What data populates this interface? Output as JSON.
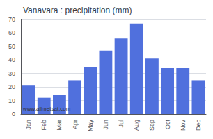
{
  "chart_data": {
    "type": "bar",
    "title": "Vanavara : precipitation (mm)",
    "categories": [
      "Jan",
      "Feb",
      "Mar",
      "Apr",
      "May",
      "Jun",
      "Jul",
      "Aug",
      "Sep",
      "Oct",
      "Nov",
      "Dec"
    ],
    "values": [
      21,
      12,
      14,
      25,
      35,
      47,
      56,
      67,
      41,
      34,
      34,
      25
    ],
    "ylim": [
      0,
      70
    ],
    "yticks": [
      0,
      10,
      20,
      30,
      40,
      50,
      60,
      70
    ],
    "grid": true,
    "annotations": [
      "www.allmetsat.com"
    ]
  }
}
